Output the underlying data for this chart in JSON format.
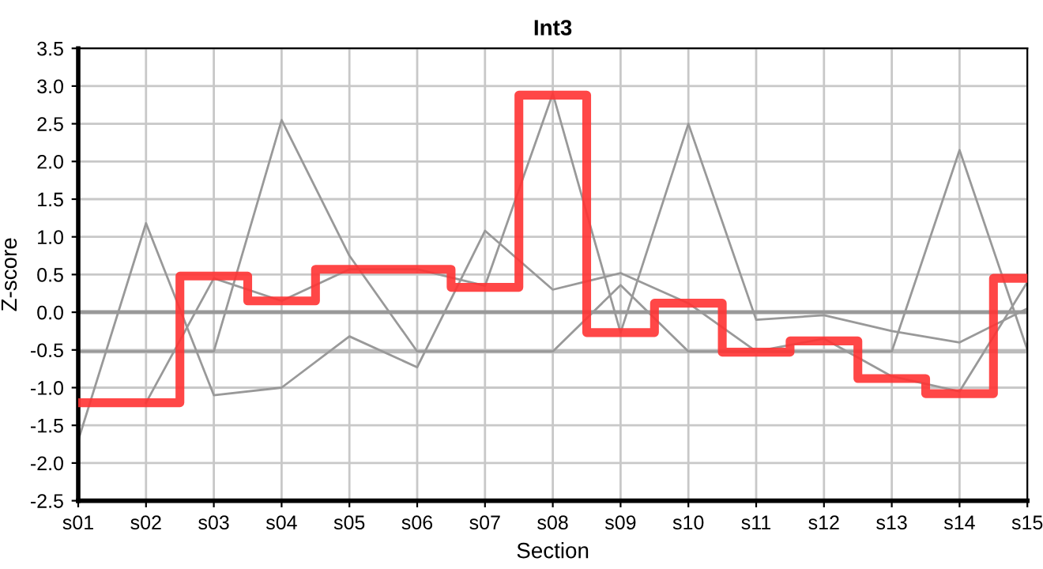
{
  "chart_data": {
    "type": "line",
    "title": "Int3",
    "xlabel": "Section",
    "ylabel": "Z-score",
    "categories": [
      "s01",
      "s02",
      "s03",
      "s04",
      "s05",
      "s06",
      "s07",
      "s08",
      "s09",
      "s10",
      "s11",
      "s12",
      "s13",
      "s14",
      "s15"
    ],
    "series": [
      {
        "color": "#999999",
        "values": [
          -0.52,
          -0.52,
          -0.52,
          2.55,
          0.75,
          -0.52,
          -0.52,
          -0.52,
          0.36,
          -0.52,
          -0.52,
          -0.52,
          -0.52,
          2.15,
          -0.5
        ]
      },
      {
        "color": "#999999",
        "values": [
          null,
          -1.2,
          0.45,
          0.15,
          0.57,
          0.57,
          0.35,
          2.9,
          -0.27,
          2.5,
          -0.1,
          -0.04,
          -0.25,
          -0.4,
          0.05
        ]
      },
      {
        "color": "#999999",
        "values": [
          -1.7,
          1.18,
          -1.1,
          -1.0,
          -0.32,
          -0.73,
          1.08,
          0.3,
          0.52,
          0.12,
          -0.52,
          -0.35,
          -0.85,
          -1.05,
          0.4
        ]
      },
      {
        "type": "step",
        "color": "#ff3333",
        "values": [
          -1.2,
          -1.2,
          0.48,
          0.15,
          0.57,
          0.57,
          0.33,
          2.88,
          -0.27,
          0.12,
          -0.53,
          -0.38,
          -0.88,
          -1.08,
          0.45
        ]
      }
    ],
    "ylim": [
      -2.5,
      3.5
    ],
    "yticks": [
      {
        "value": -2.5,
        "label": "-2.5"
      },
      {
        "value": -2,
        "label": "-2.0"
      },
      {
        "value": -1.5,
        "label": "-1.5"
      },
      {
        "value": -1,
        "label": "-1.0"
      },
      {
        "value": -0.5,
        "label": "-0.5"
      },
      {
        "value": 0,
        "label": "0.0"
      },
      {
        "value": 0.5,
        "label": "0.5"
      },
      {
        "value": 1,
        "label": "1.0"
      },
      {
        "value": 1.5,
        "label": "1.5"
      },
      {
        "value": 2,
        "label": "2.0"
      },
      {
        "value": 2.5,
        "label": "2.5"
      },
      {
        "value": 3,
        "label": "3.0"
      },
      {
        "value": 3.5,
        "label": "3.5"
      }
    ],
    "ref_lines": [
      {
        "axis": "y",
        "value": 0,
        "color": "#999999"
      },
      {
        "axis": "y",
        "value": -0.52,
        "color": "#bbbbbb"
      }
    ],
    "grid": true,
    "marker": "none"
  }
}
